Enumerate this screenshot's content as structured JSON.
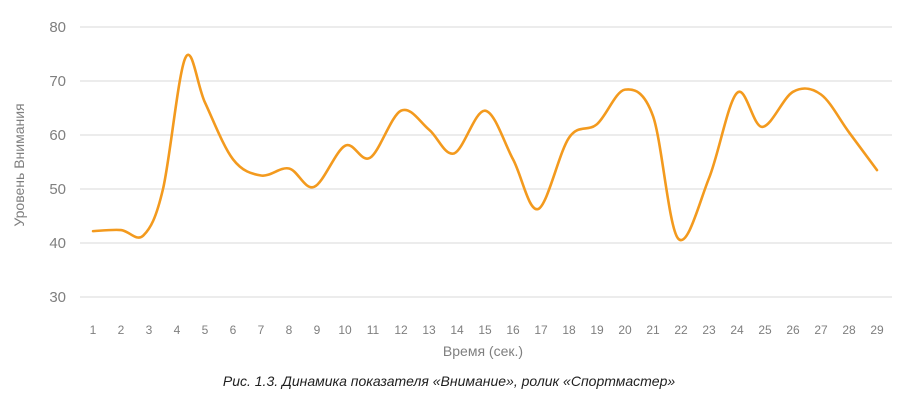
{
  "chart_data": {
    "type": "line",
    "title": "",
    "caption": "Рис. 1.3. Динамика показателя «Внимание», ролик «Спортмастер»",
    "xlabel": "Время (сек.)",
    "ylabel": "Уровень Внимания",
    "ylim": [
      30,
      80
    ],
    "yticks": [
      30,
      40,
      50,
      60,
      70,
      80
    ],
    "grid": true,
    "legend": "none",
    "smooth": true,
    "series_color": "#F39A1E",
    "grid_color": "#D9D9D9",
    "x": [
      "1",
      "2",
      "3",
      "4",
      "5",
      "6",
      "7",
      "8",
      "9",
      "10",
      "11",
      "12",
      "13",
      "14",
      "15",
      "16",
      "17",
      "18",
      "19",
      "20",
      "21",
      "22",
      "23",
      "24",
      "25",
      "26",
      "27",
      "28",
      "29"
    ],
    "series": [
      {
        "points": [
          [
            1,
            42.2
          ],
          [
            2,
            42.4
          ],
          [
            2.8,
            41.4
          ],
          [
            3.5,
            50.0
          ],
          [
            4.3,
            74.3
          ],
          [
            5,
            66.0
          ],
          [
            6,
            55.5
          ],
          [
            7,
            52.5
          ],
          [
            8,
            53.8
          ],
          [
            8.9,
            50.4
          ],
          [
            10,
            58.0
          ],
          [
            10.9,
            55.8
          ],
          [
            12,
            64.5
          ],
          [
            13,
            61.0
          ],
          [
            13.9,
            56.6
          ],
          [
            15,
            64.5
          ],
          [
            16,
            55.5
          ],
          [
            16.9,
            46.3
          ],
          [
            18,
            59.5
          ],
          [
            19,
            62.0
          ],
          [
            20,
            68.4
          ],
          [
            21,
            63.5
          ],
          [
            21.9,
            40.8
          ],
          [
            23,
            52.0
          ],
          [
            24,
            67.8
          ],
          [
            24.9,
            61.5
          ],
          [
            26,
            68.0
          ],
          [
            27,
            67.5
          ],
          [
            28,
            60.5
          ],
          [
            29,
            53.5
          ]
        ]
      }
    ]
  }
}
